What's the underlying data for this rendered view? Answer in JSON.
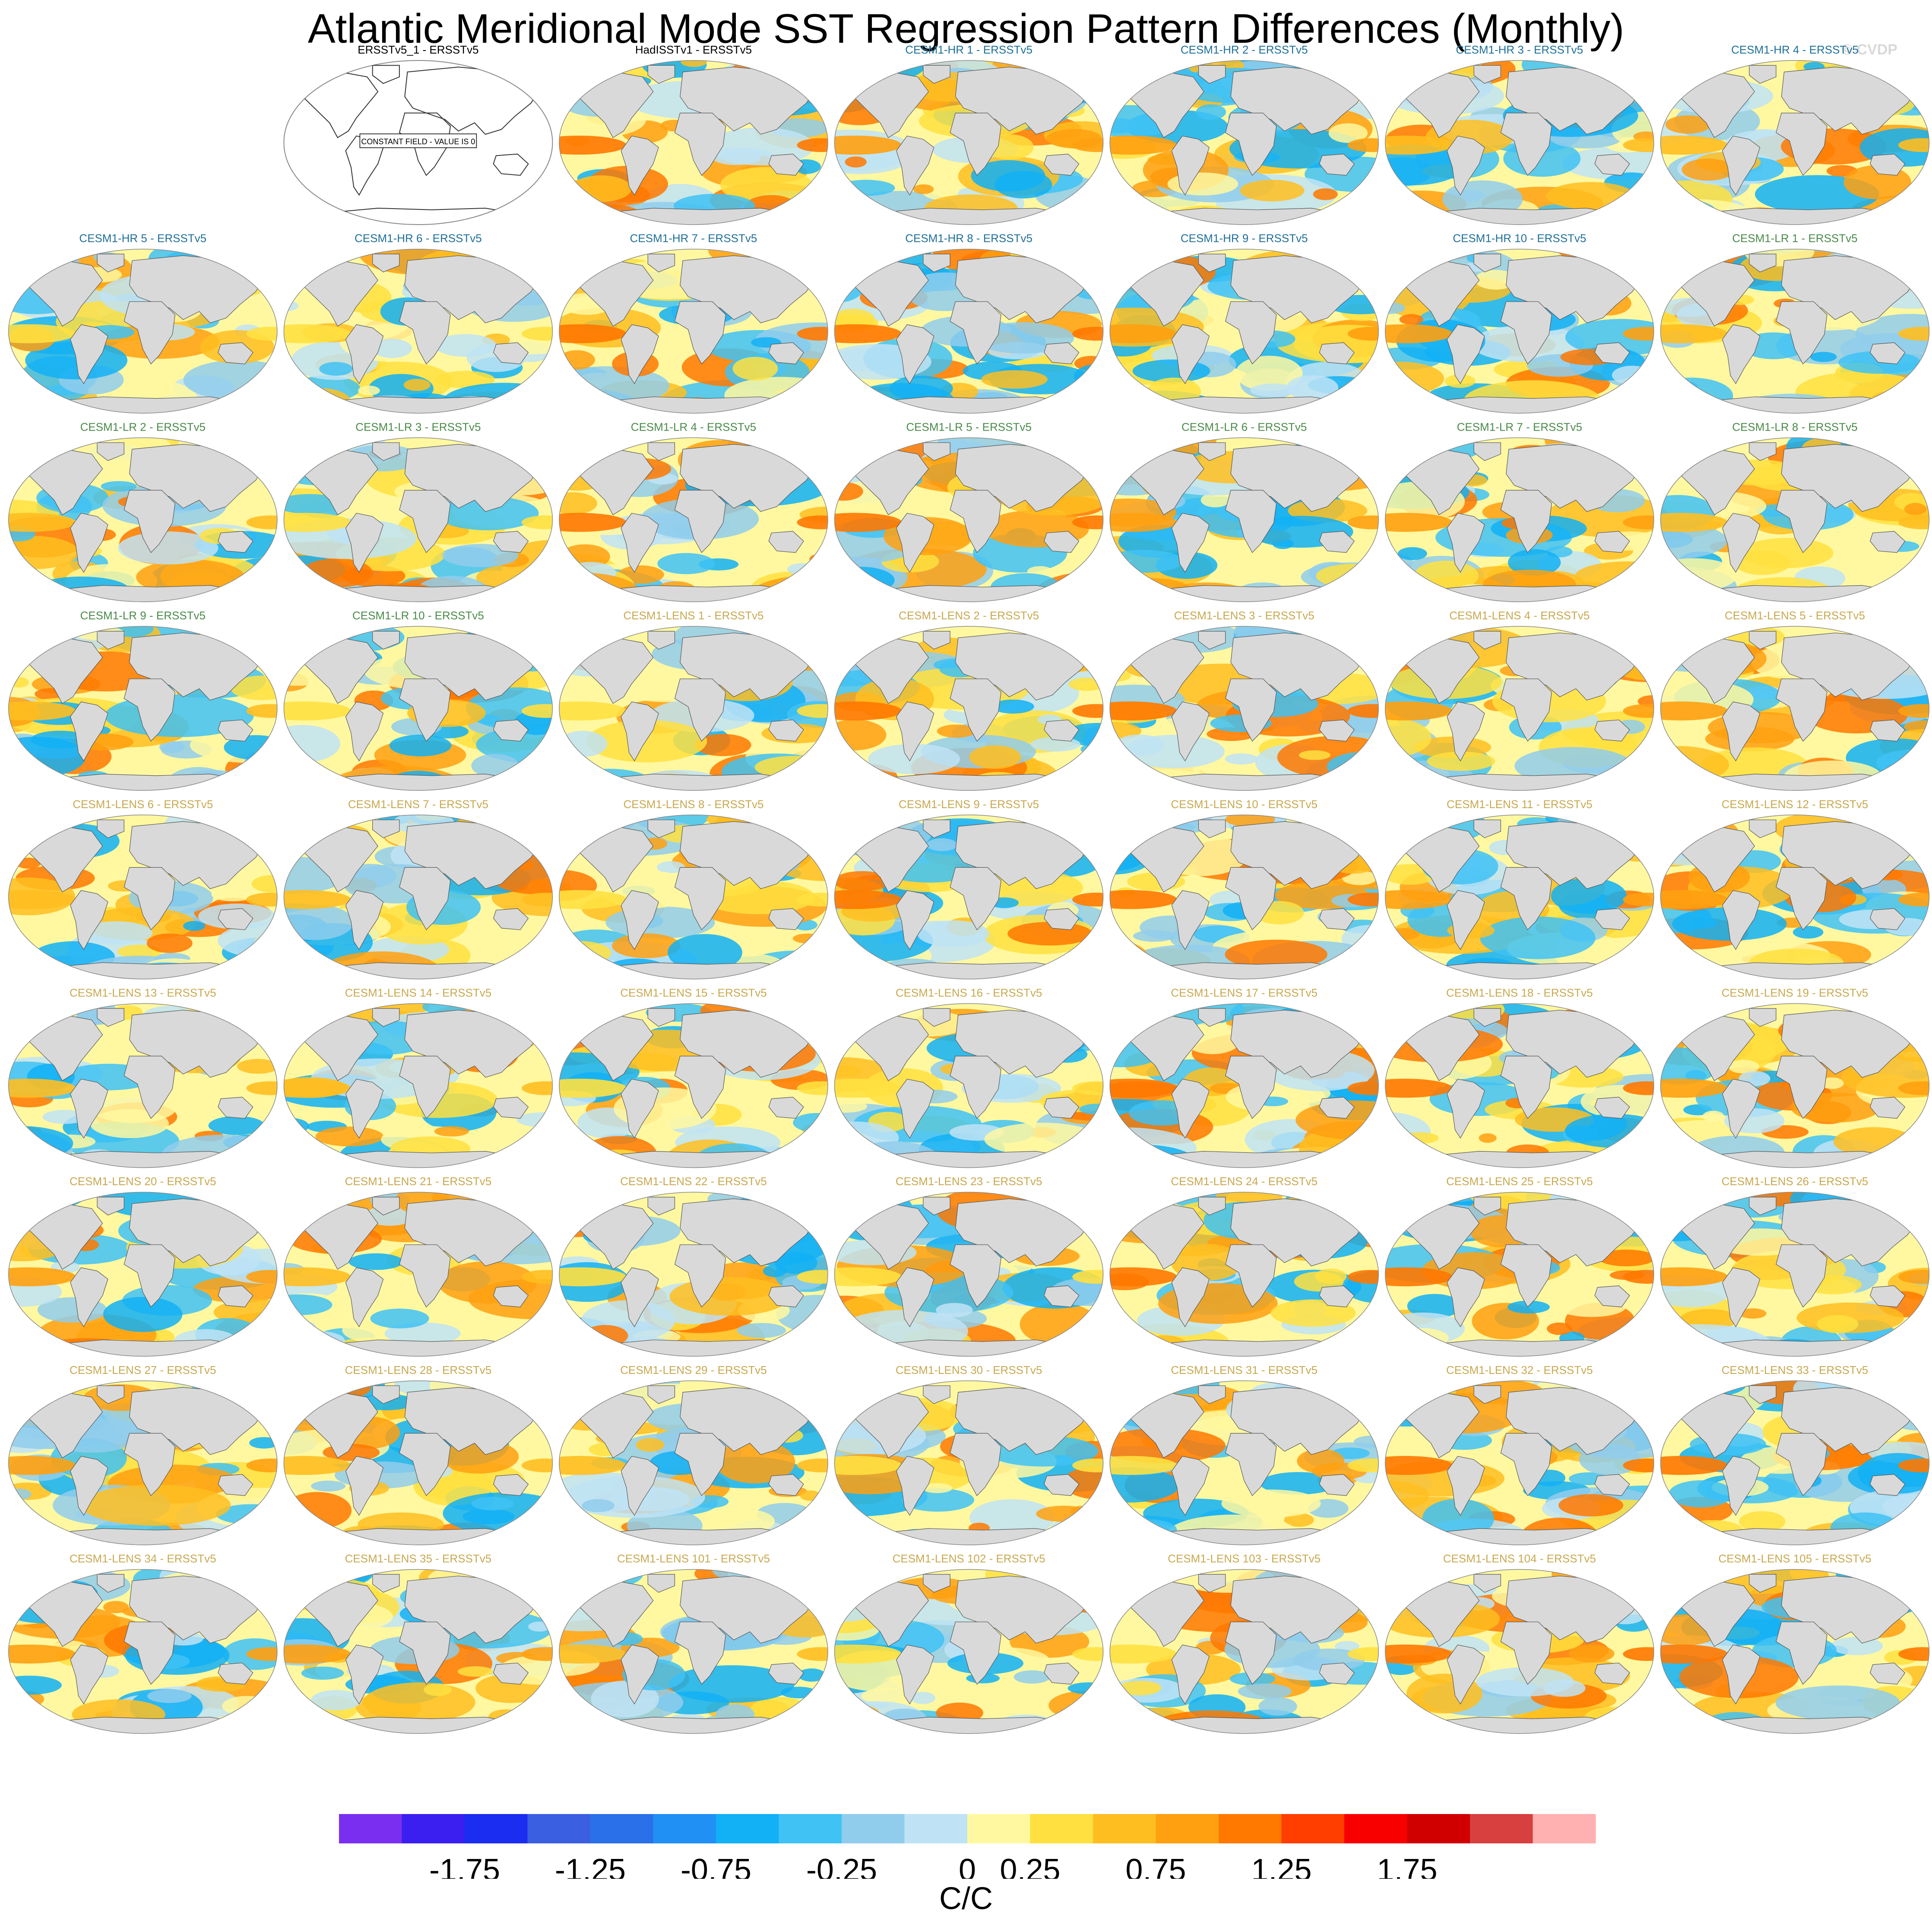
{
  "title": "Atlantic Meridional Mode SST Regression Pattern Differences (Monthly)",
  "credit": "© CVDP",
  "colors": {
    "title_obs": "#000000",
    "title_hr": "#1f6f99",
    "title_lr": "#4a8a4a",
    "title_lens": "#c8a850",
    "land": "#d9d9d9",
    "coast": "#555555",
    "outline": "#888888"
  },
  "chart_data": {
    "type": "map-grid",
    "rows": 9,
    "cols": 7,
    "field_units": "C/C",
    "panels": [
      {
        "label": "",
        "kind": "empty"
      },
      {
        "label": "ERSSTv5_1 - ERSSTv5",
        "kind": "obs",
        "constant": true,
        "note": "CONSTANT FIELD - VALUE IS 0"
      },
      {
        "label": "HadISSTv1 - ERSSTv5",
        "kind": "obs"
      },
      {
        "label": "CESM1-HR 1 - ERSSTv5",
        "kind": "hr"
      },
      {
        "label": "CESM1-HR 2 - ERSSTv5",
        "kind": "hr"
      },
      {
        "label": "CESM1-HR 3 - ERSSTv5",
        "kind": "hr"
      },
      {
        "label": "CESM1-HR 4 - ERSSTv5",
        "kind": "hr"
      },
      {
        "label": "CESM1-HR 5 - ERSSTv5",
        "kind": "hr"
      },
      {
        "label": "CESM1-HR 6 - ERSSTv5",
        "kind": "hr"
      },
      {
        "label": "CESM1-HR 7 - ERSSTv5",
        "kind": "hr"
      },
      {
        "label": "CESM1-HR 8 - ERSSTv5",
        "kind": "hr"
      },
      {
        "label": "CESM1-HR 9 - ERSSTv5",
        "kind": "hr"
      },
      {
        "label": "CESM1-HR 10 - ERSSTv5",
        "kind": "hr"
      },
      {
        "label": "CESM1-LR 1 - ERSSTv5",
        "kind": "lr"
      },
      {
        "label": "CESM1-LR 2 - ERSSTv5",
        "kind": "lr"
      },
      {
        "label": "CESM1-LR 3 - ERSSTv5",
        "kind": "lr"
      },
      {
        "label": "CESM1-LR 4 - ERSSTv5",
        "kind": "lr"
      },
      {
        "label": "CESM1-LR 5 - ERSSTv5",
        "kind": "lr"
      },
      {
        "label": "CESM1-LR 6 - ERSSTv5",
        "kind": "lr"
      },
      {
        "label": "CESM1-LR 7 - ERSSTv5",
        "kind": "lr"
      },
      {
        "label": "CESM1-LR 8 - ERSSTv5",
        "kind": "lr"
      },
      {
        "label": "CESM1-LR 9 - ERSSTv5",
        "kind": "lr"
      },
      {
        "label": "CESM1-LR 10 - ERSSTv5",
        "kind": "lr"
      },
      {
        "label": "CESM1-LENS 1 - ERSSTv5",
        "kind": "lens"
      },
      {
        "label": "CESM1-LENS 2 - ERSSTv5",
        "kind": "lens"
      },
      {
        "label": "CESM1-LENS 3 - ERSSTv5",
        "kind": "lens"
      },
      {
        "label": "CESM1-LENS 4 - ERSSTv5",
        "kind": "lens"
      },
      {
        "label": "CESM1-LENS 5 - ERSSTv5",
        "kind": "lens"
      },
      {
        "label": "CESM1-LENS 6 - ERSSTv5",
        "kind": "lens"
      },
      {
        "label": "CESM1-LENS 7 - ERSSTv5",
        "kind": "lens"
      },
      {
        "label": "CESM1-LENS 8 - ERSSTv5",
        "kind": "lens"
      },
      {
        "label": "CESM1-LENS 9 - ERSSTv5",
        "kind": "lens"
      },
      {
        "label": "CESM1-LENS 10 - ERSSTv5",
        "kind": "lens"
      },
      {
        "label": "CESM1-LENS 11 - ERSSTv5",
        "kind": "lens"
      },
      {
        "label": "CESM1-LENS 12 - ERSSTv5",
        "kind": "lens"
      },
      {
        "label": "CESM1-LENS 13 - ERSSTv5",
        "kind": "lens"
      },
      {
        "label": "CESM1-LENS 14 - ERSSTv5",
        "kind": "lens"
      },
      {
        "label": "CESM1-LENS 15 - ERSSTv5",
        "kind": "lens"
      },
      {
        "label": "CESM1-LENS 16 - ERSSTv5",
        "kind": "lens"
      },
      {
        "label": "CESM1-LENS 17 - ERSSTv5",
        "kind": "lens"
      },
      {
        "label": "CESM1-LENS 18 - ERSSTv5",
        "kind": "lens"
      },
      {
        "label": "CESM1-LENS 19 - ERSSTv5",
        "kind": "lens"
      },
      {
        "label": "CESM1-LENS 20 - ERSSTv5",
        "kind": "lens"
      },
      {
        "label": "CESM1-LENS 21 - ERSSTv5",
        "kind": "lens"
      },
      {
        "label": "CESM1-LENS 22 - ERSSTv5",
        "kind": "lens"
      },
      {
        "label": "CESM1-LENS 23 - ERSSTv5",
        "kind": "lens"
      },
      {
        "label": "CESM1-LENS 24 - ERSSTv5",
        "kind": "lens"
      },
      {
        "label": "CESM1-LENS 25 - ERSSTv5",
        "kind": "lens"
      },
      {
        "label": "CESM1-LENS 26 - ERSSTv5",
        "kind": "lens"
      },
      {
        "label": "CESM1-LENS 27 - ERSSTv5",
        "kind": "lens"
      },
      {
        "label": "CESM1-LENS 28 - ERSSTv5",
        "kind": "lens"
      },
      {
        "label": "CESM1-LENS 29 - ERSSTv5",
        "kind": "lens"
      },
      {
        "label": "CESM1-LENS 30 - ERSSTv5",
        "kind": "lens"
      },
      {
        "label": "CESM1-LENS 31 - ERSSTv5",
        "kind": "lens"
      },
      {
        "label": "CESM1-LENS 32 - ERSSTv5",
        "kind": "lens"
      },
      {
        "label": "CESM1-LENS 33 - ERSSTv5",
        "kind": "lens"
      },
      {
        "label": "CESM1-LENS 34 - ERSSTv5",
        "kind": "lens"
      },
      {
        "label": "CESM1-LENS 35 - ERSSTv5",
        "kind": "lens"
      },
      {
        "label": "CESM1-LENS 101 - ERSSTv5",
        "kind": "lens"
      },
      {
        "label": "CESM1-LENS 102 - ERSSTv5",
        "kind": "lens"
      },
      {
        "label": "CESM1-LENS 103 - ERSSTv5",
        "kind": "lens"
      },
      {
        "label": "CESM1-LENS 104 - ERSSTv5",
        "kind": "lens"
      },
      {
        "label": "CESM1-LENS 105 - ERSSTv5",
        "kind": "lens"
      }
    ],
    "colorbar": {
      "colors": [
        "#7a2ff0",
        "#3a1ff0",
        "#1a2df0",
        "#3a5fe0",
        "#2a70e8",
        "#2090f5",
        "#12b0f5",
        "#40c2f5",
        "#90ccec",
        "#bfe3f5",
        "#fff8a0",
        "#ffe040",
        "#ffbe20",
        "#ffa010",
        "#ff7800",
        "#ff3e00",
        "#f80000",
        "#d00000",
        "#d84040",
        "#ffb0b0"
      ],
      "tick_labels": [
        "-1.75",
        "-1.25",
        "-0.75",
        "-0.25",
        "0",
        "0.25",
        "0.75",
        "1.25",
        "1.75"
      ],
      "units": "C/C"
    }
  }
}
